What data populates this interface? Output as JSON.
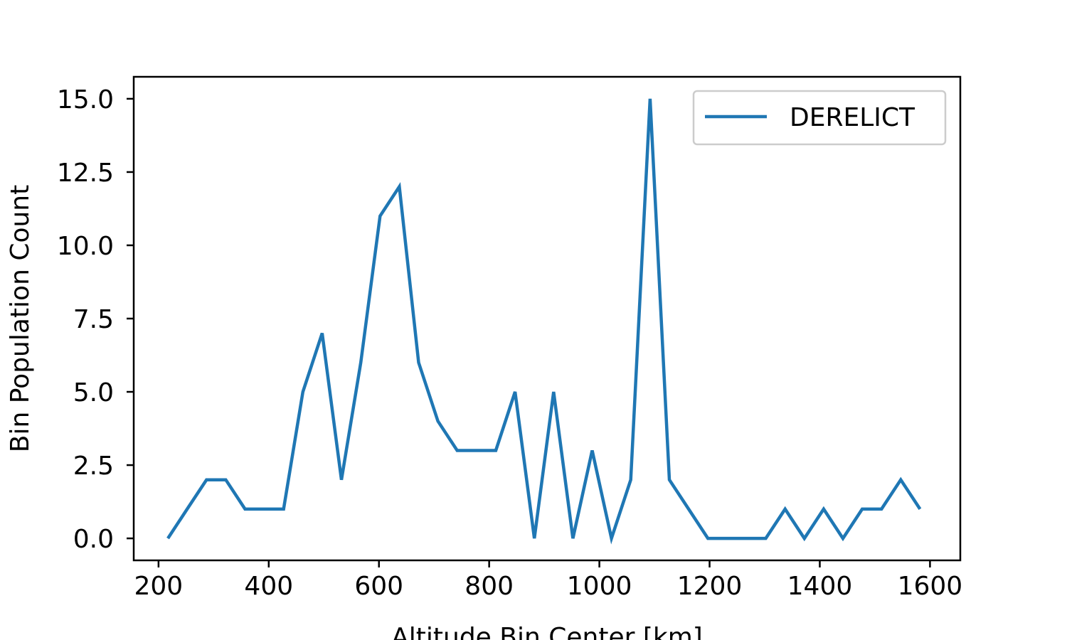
{
  "chart_data": {
    "type": "line",
    "title": "",
    "xlabel": "Altitude Bin Center [km]",
    "ylabel": "Bin Population Count",
    "xlim": [
      155,
      1655
    ],
    "ylim": [
      -0.75,
      15.75
    ],
    "xticks": [
      200,
      400,
      600,
      800,
      1000,
      1200,
      1400,
      1600
    ],
    "yticks": [
      0.0,
      2.5,
      5.0,
      7.5,
      10.0,
      12.5,
      15.0
    ],
    "xtick_labels": [
      "200",
      "400",
      "600",
      "800",
      "1000",
      "1200",
      "1400",
      "1600"
    ],
    "ytick_labels": [
      "0.0",
      "2.5",
      "5.0",
      "7.5",
      "10.0",
      "12.5",
      "15.0"
    ],
    "grid": false,
    "legend_position": "top-right",
    "series": [
      {
        "name": "DERELICT",
        "color": "#1f77b4",
        "x": [
          217,
          252,
          287,
          322,
          357,
          392,
          427,
          462,
          497,
          532,
          567,
          602,
          637,
          672,
          707,
          742,
          777,
          812,
          847,
          882,
          917,
          952,
          987,
          1022,
          1057,
          1092,
          1127,
          1162,
          1197,
          1232,
          1267,
          1302,
          1337,
          1372,
          1407,
          1442,
          1477,
          1512,
          1547,
          1582
        ],
        "y": [
          0,
          1,
          2,
          2,
          1,
          1,
          1,
          5,
          7,
          2,
          6,
          11,
          12,
          6,
          4,
          3,
          3,
          3,
          5,
          0,
          5,
          0,
          3,
          0,
          2,
          15,
          2,
          1,
          0,
          0,
          0,
          0,
          1,
          0,
          1,
          0,
          1,
          1,
          2,
          1
        ]
      }
    ]
  }
}
